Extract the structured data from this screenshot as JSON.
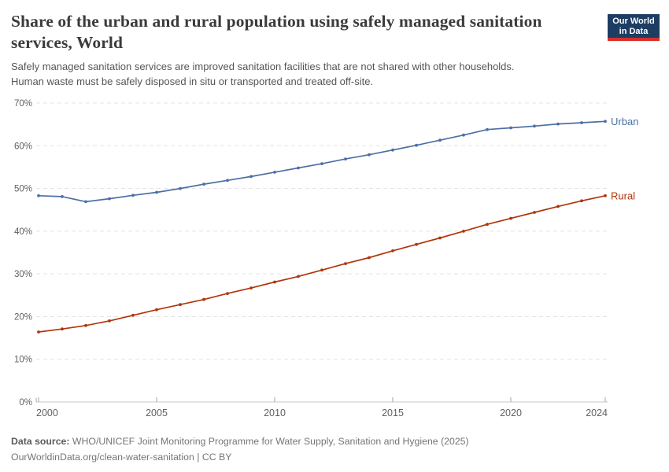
{
  "header": {
    "title_lines": [
      "Share of the urban and rural population using safely managed sanitation",
      "services, World"
    ],
    "subtitle_lines": [
      "Safely managed sanitation services are improved sanitation facilities that are not shared with other households.",
      "Human waste must be safely disposed in situ or transported and treated off-site."
    ],
    "logo": {
      "lines": [
        "Our World",
        "in Data"
      ],
      "bg_color": "#1d3d63",
      "bar_color": "#d6302a"
    }
  },
  "chart_data": {
    "type": "line",
    "title": "Share of the urban and rural population using safely managed sanitation services, World",
    "subtitle": "Safely managed sanitation services are improved sanitation facilities that are not shared with other households. Human waste must be safely disposed in situ or transported and treated off-site.",
    "x": [
      2000,
      2001,
      2002,
      2003,
      2004,
      2005,
      2006,
      2007,
      2008,
      2009,
      2010,
      2011,
      2012,
      2013,
      2014,
      2015,
      2016,
      2017,
      2018,
      2019,
      2020,
      2021,
      2022,
      2023,
      2024
    ],
    "series": [
      {
        "name": "Urban",
        "color": "#4c6fa5",
        "values": [
          48.3,
          48.1,
          46.9,
          47.6,
          48.4,
          49.1,
          50.0,
          51.0,
          51.9,
          52.8,
          53.8,
          54.8,
          55.8,
          56.9,
          57.9,
          59.0,
          60.1,
          61.3,
          62.5,
          63.8,
          64.2,
          64.6,
          65.1,
          65.4,
          65.7
        ]
      },
      {
        "name": "Rural",
        "color": "#b1350b",
        "values": [
          16.4,
          17.1,
          17.9,
          19.0,
          20.3,
          21.6,
          22.8,
          24.0,
          25.4,
          26.7,
          28.1,
          29.4,
          30.9,
          32.4,
          33.8,
          35.4,
          36.9,
          38.4,
          40.0,
          41.6,
          43.0,
          44.4,
          45.8,
          47.1,
          48.3
        ]
      }
    ],
    "xlabel": "",
    "ylabel": "",
    "xlim": [
      2000,
      2024
    ],
    "ylim": [
      0,
      70
    ],
    "x_ticks": [
      2000,
      2005,
      2010,
      2015,
      2020,
      2024
    ],
    "y_ticks": [
      0,
      10,
      20,
      30,
      40,
      50,
      60,
      70
    ],
    "y_tick_suffix": "%",
    "grid": "horizontal-dashed",
    "legend": "line-end-labels",
    "colors": {
      "gridline": "#e3e3e3",
      "axis_line": "#c9c9c9",
      "tick_mark": "#a5a5a5",
      "tick_label": "#5f5f5f"
    }
  },
  "footer": {
    "source_label": "Data source:",
    "source_text": " WHO/UNICEF Joint Monitoring Programme for Water Supply, Sanitation and Hygiene (2025)",
    "link_line": "OurWorldinData.org/clean-water-sanitation | CC BY"
  }
}
